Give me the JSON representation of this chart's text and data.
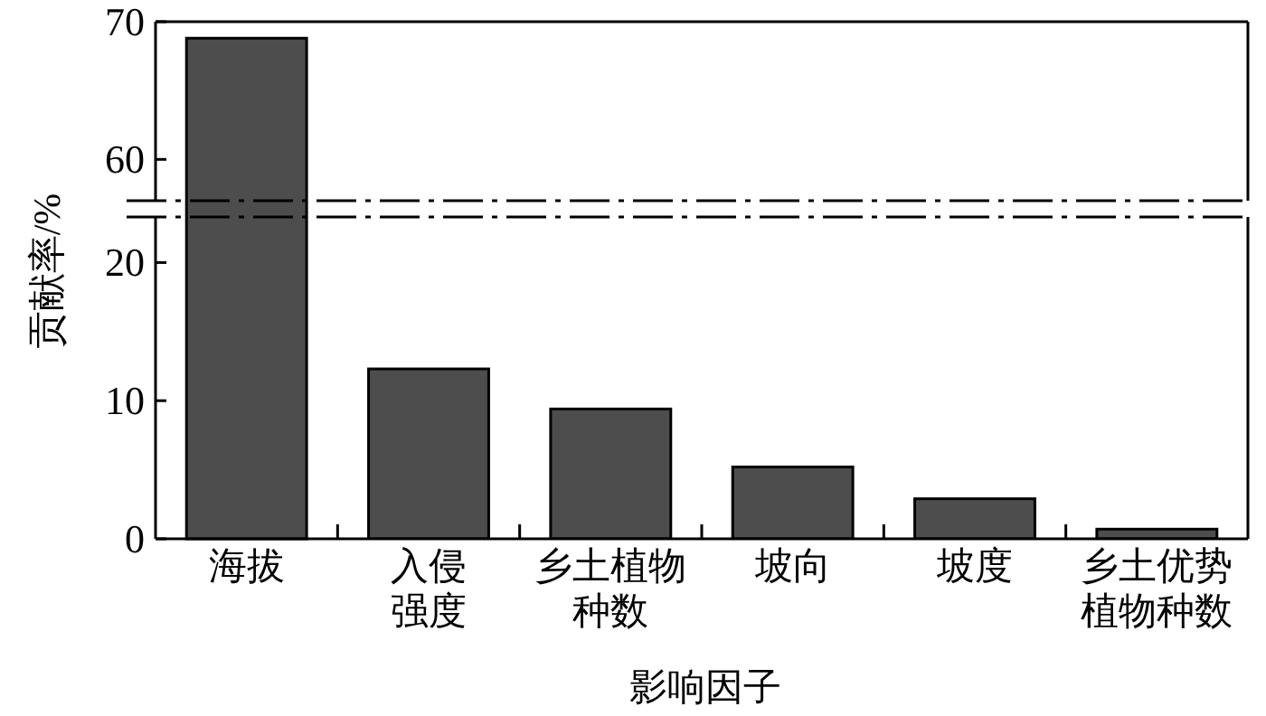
{
  "chart_data": [
    {
      "type": "bar",
      "ylabel": "贡献率/%",
      "categories": [
        null,
        null,
        null,
        null,
        null,
        null
      ],
      "values": [
        68.8,
        null,
        null,
        null,
        null,
        null
      ],
      "color": "#4d4d4d",
      "ylim": [
        57,
        70
      ],
      "yticks": [
        60,
        70
      ],
      "tick_labels": "y",
      "grid": false
    },
    {
      "type": "bar",
      "xlabel": "影响因子",
      "categories": [
        "海拔",
        "入侵强度",
        "乡土植物种数",
        "坡向",
        "坡度",
        "乡土优势植物种数"
      ],
      "values": [
        null,
        12.3,
        9.4,
        5.2,
        2.9,
        0.7
      ],
      "color": "#4d4d4d",
      "ylim": [
        0,
        23.3
      ],
      "yticks": [
        0,
        10,
        20
      ],
      "grid": false
    }
  ]
}
